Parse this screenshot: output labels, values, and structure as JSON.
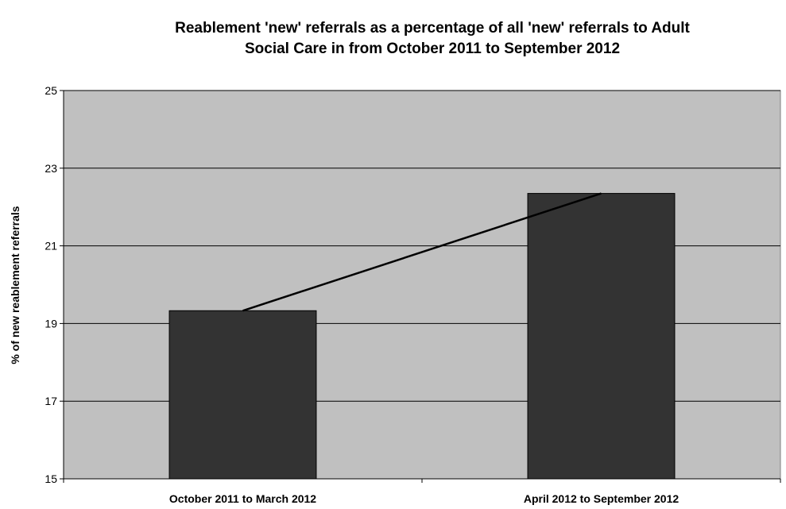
{
  "chart_data": {
    "type": "bar",
    "title": "Reablement 'new' referrals as a percentage of all 'new' referrals to Adult Social Care in from October 2011 to September 2012",
    "title_lines": [
      "Reablement 'new' referrals as a percentage of all 'new' referrals to Adult",
      "Social Care in from October 2011 to September 2012"
    ],
    "categories": [
      "October 2011 to March 2012",
      "April 2012 to September 2012"
    ],
    "values": [
      19.33,
      22.35
    ],
    "trendline": true,
    "xlabel": "",
    "ylabel": "% of new reablement referrals",
    "ylim": [
      15,
      25
    ],
    "yticks": [
      15,
      17,
      19,
      21,
      23,
      25
    ],
    "grid": true,
    "legend": "none",
    "colors": {
      "plot_background": "#c0c0c0",
      "bar_fill": "#333333",
      "bar_stroke": "#000000",
      "gridline": "#000000",
      "trendline": "#000000"
    }
  }
}
